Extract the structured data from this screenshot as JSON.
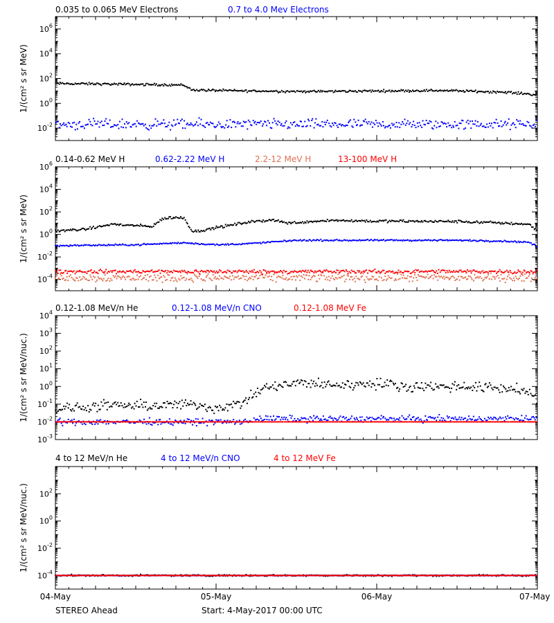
{
  "footer": {
    "spacecraft": "STEREO Ahead",
    "start_label": "Start:  4-May-2017 00:00 UTC"
  },
  "x_axis": {
    "ticks": [
      {
        "day": 0,
        "label": "04-May"
      },
      {
        "day": 1,
        "label": "05-May"
      },
      {
        "day": 2,
        "label": "06-May"
      },
      {
        "day": 3,
        "label": "07-May"
      }
    ]
  },
  "colors": {
    "black": "#000000",
    "blue": "#0000ff",
    "salmon": "#e07050",
    "red": "#ff0000"
  },
  "chart_data": [
    {
      "type": "scatter",
      "ylabel": "1/(cm² s sr MeV)",
      "yscale": "log",
      "ylim_exp": [
        -3,
        7
      ],
      "yticks_exp": [
        -2,
        0,
        2,
        4,
        6
      ],
      "xlim_days": [
        0,
        3
      ],
      "series": [
        {
          "name": "0.035 to 0.065 MeV Electrons",
          "color": "black",
          "x": [
            0,
            0.4,
            0.8,
            0.85,
            1.2,
            1.6,
            2.0,
            2.4,
            2.8,
            3.0
          ],
          "y": [
            40,
            35,
            30,
            12,
            10,
            9,
            10,
            11,
            8,
            5
          ],
          "scatter": 0.08
        },
        {
          "name": "0.7 to 4.0 Mev Electrons",
          "color": "blue",
          "x": [
            0,
            1,
            2,
            3
          ],
          "y": [
            0.02,
            0.02,
            0.02,
            0.02
          ],
          "scatter": 0.35
        }
      ]
    },
    {
      "type": "scatter",
      "ylabel": "1/(cm² s sr MeV)",
      "yscale": "log",
      "ylim_exp": [
        -5,
        6
      ],
      "yticks_exp": [
        -4,
        -2,
        0,
        2,
        4,
        6
      ],
      "xlim_days": [
        0,
        3
      ],
      "series": [
        {
          "name": "0.14-0.62 MeV H",
          "color": "black",
          "x": [
            0,
            0.2,
            0.35,
            0.5,
            0.6,
            0.67,
            0.7,
            0.8,
            0.85,
            0.9,
            1.0,
            1.2,
            1.35,
            1.45,
            1.7,
            2.0,
            2.5,
            2.8,
            2.95,
            3.0
          ],
          "y": [
            2,
            3,
            8,
            6,
            5,
            25,
            30,
            30,
            2,
            2,
            4,
            12,
            20,
            10,
            18,
            15,
            14,
            10,
            8,
            2
          ],
          "scatter": 0.1
        },
        {
          "name": "0.62-2.22 MeV H",
          "color": "blue",
          "x": [
            0,
            0.5,
            0.8,
            1.0,
            1.2,
            1.5,
            2.0,
            2.5,
            2.8,
            2.95,
            3.0
          ],
          "y": [
            0.1,
            0.12,
            0.18,
            0.12,
            0.15,
            0.3,
            0.3,
            0.3,
            0.25,
            0.2,
            0.08
          ],
          "scatter": 0.06
        },
        {
          "name": "2.2-12 MeV H",
          "color": "salmon",
          "x": [
            0,
            1,
            2,
            3
          ],
          "y": [
            0.00014,
            0.00014,
            0.00014,
            0.00014
          ],
          "scatter": 0.3
        },
        {
          "name": "13-100 MeV H",
          "color": "red",
          "x": [
            0,
            1,
            2,
            3
          ],
          "y": [
            0.0005,
            0.0005,
            0.0005,
            0.0005
          ],
          "scatter": 0.15
        }
      ]
    },
    {
      "type": "scatter",
      "ylabel": "1/(cm² s sr MeV/nuc.)",
      "yscale": "log",
      "ylim_exp": [
        -3,
        4
      ],
      "yticks_exp": [
        -3,
        -2,
        -1,
        0,
        1,
        2,
        3,
        4
      ],
      "xlim_days": [
        0,
        3
      ],
      "series": [
        {
          "name": "0.12-1.08 MeV/n He",
          "color": "black",
          "x": [
            0,
            0.3,
            0.6,
            0.8,
            1.0,
            1.15,
            1.3,
            1.5,
            1.8,
            2.0,
            2.2,
            2.5,
            2.8,
            2.95,
            3.0
          ],
          "y": [
            0.05,
            0.08,
            0.08,
            0.1,
            0.06,
            0.1,
            0.8,
            1.5,
            1.2,
            1.5,
            1.0,
            1.0,
            0.8,
            0.5,
            0.1
          ],
          "scatter": 0.25
        },
        {
          "name": "0.12-1.08 MeV/n CNO",
          "color": "blue",
          "x": [
            0,
            1.2,
            1.25,
            3.0
          ],
          "y": [
            0.01,
            0.01,
            0.015,
            0.015
          ],
          "scatter": 0.15
        },
        {
          "name": "0.12-1.08 MeV Fe",
          "color": "red",
          "x": [
            0,
            3.0
          ],
          "y": [
            0.01,
            0.01
          ],
          "scatter": 0.0
        }
      ]
    },
    {
      "type": "scatter",
      "ylabel": "1/(cm² s sr MeV/nuc.)",
      "yscale": "log",
      "ylim_exp": [
        -5,
        4
      ],
      "yticks_exp": [
        -4,
        -2,
        0,
        2
      ],
      "xlim_days": [
        0,
        3
      ],
      "series": [
        {
          "name": "4 to 12 MeV/n He",
          "color": "black",
          "x": [
            0,
            3.0
          ],
          "y": [
            0.0001,
            0.0001
          ],
          "scatter": 0.05
        },
        {
          "name": "4 to 12 MeV/n CNO",
          "color": "blue",
          "x": [
            0,
            3.0
          ],
          "y": [
            0.0001,
            0.0001
          ],
          "scatter": 0.02
        },
        {
          "name": "4 to 12 MeV Fe",
          "color": "red",
          "x": [
            0,
            3.0
          ],
          "y": [
            0.0001,
            0.0001
          ],
          "scatter": 0.0
        }
      ]
    }
  ]
}
